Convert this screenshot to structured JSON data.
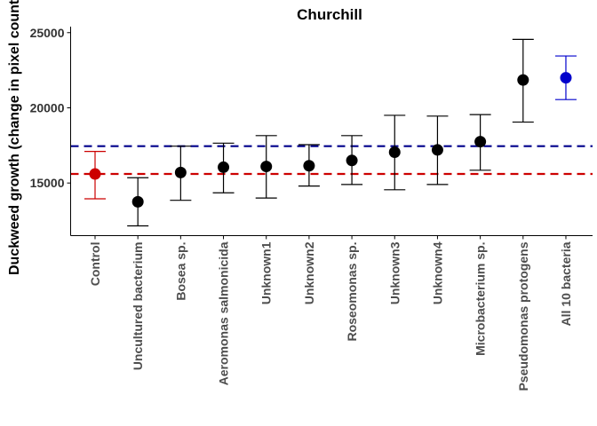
{
  "chart_data": {
    "type": "scatter",
    "title": "Churchill",
    "ylabel": "Duckweed growth (change in pixel count)",
    "xlabel": "",
    "ylim": [
      11500,
      25400
    ],
    "yticks": [
      15000,
      20000,
      25000
    ],
    "ytick_labels": [
      "15000",
      "20000",
      "25000"
    ],
    "grid": false,
    "legend": "none",
    "categories": [
      "Control",
      "Uncultured bacterium",
      "Bosea sp.",
      "Aeromonas salmonicida",
      "Unknown1",
      "Unknown2",
      "Roseomonas sp.",
      "Unknown3",
      "Unknown4",
      "Microbacterium sp.",
      "Pseudomonas protogens",
      "All 10 bacteria"
    ],
    "values": [
      15600,
      13750,
      15700,
      16050,
      16100,
      16150,
      16500,
      17050,
      17200,
      17750,
      21850,
      22000
    ],
    "error_low": [
      13950,
      12150,
      13850,
      14350,
      14000,
      14800,
      14900,
      14550,
      14900,
      15850,
      19050,
      20550
    ],
    "error_high": [
      17100,
      15350,
      17450,
      17650,
      18150,
      17550,
      18150,
      19500,
      19450,
      19550,
      24550,
      23450
    ],
    "point_colors": [
      "#cc0000",
      "#000000",
      "#000000",
      "#000000",
      "#000000",
      "#000000",
      "#000000",
      "#000000",
      "#000000",
      "#000000",
      "#000000",
      "#0000cc"
    ],
    "reference_lines": [
      {
        "value": 17450,
        "color": "#00008b",
        "style": "dashed"
      },
      {
        "value": 15600,
        "color": "#cc0000",
        "style": "dashed"
      }
    ]
  }
}
